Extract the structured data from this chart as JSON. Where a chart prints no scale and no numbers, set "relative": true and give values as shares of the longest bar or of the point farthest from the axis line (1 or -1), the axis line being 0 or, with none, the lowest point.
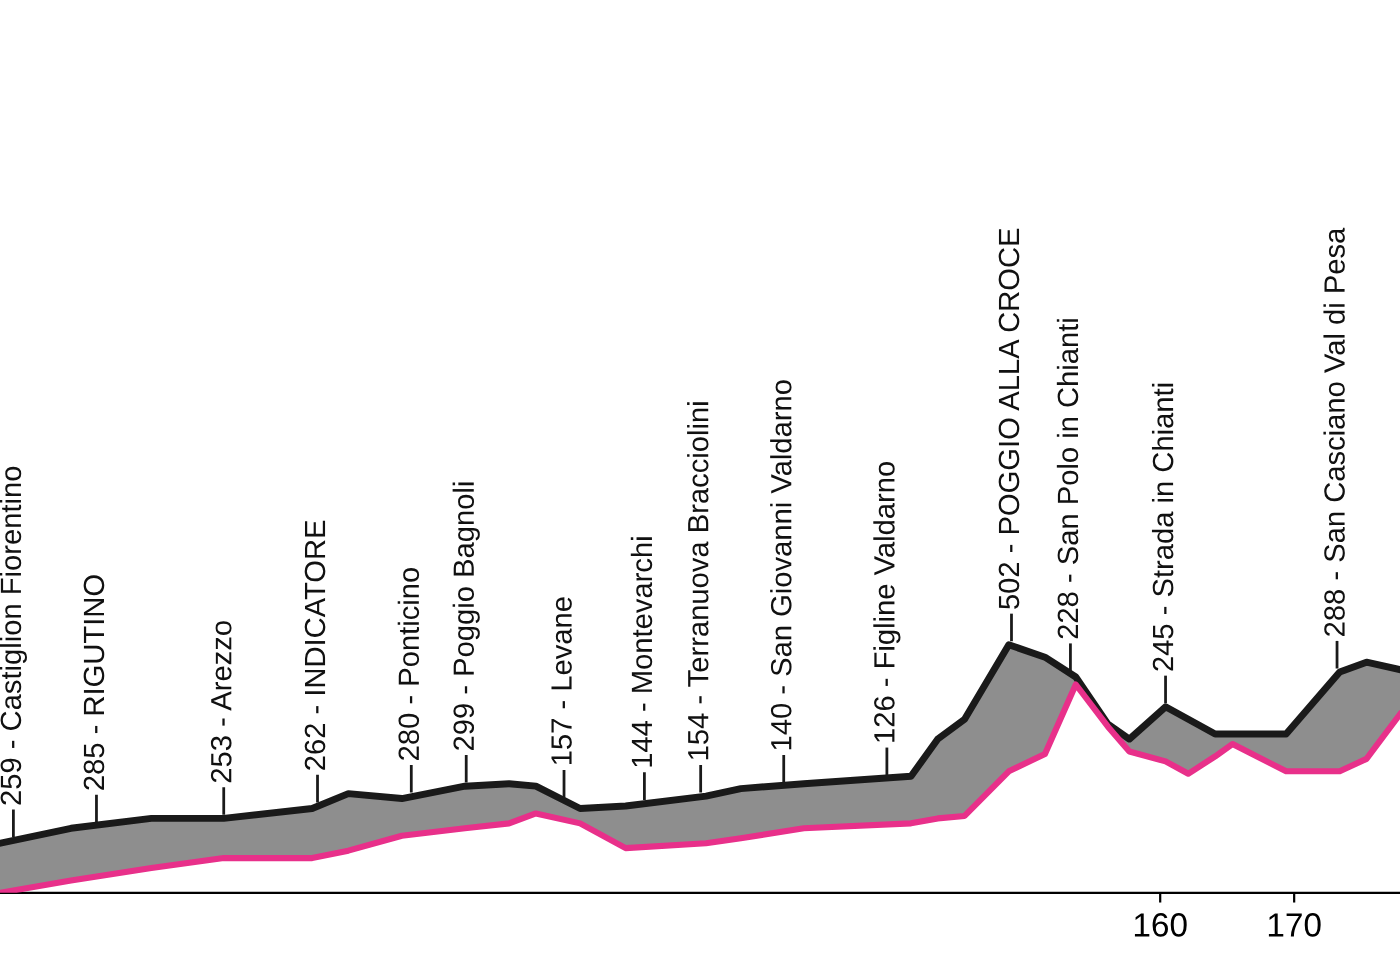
{
  "chart_data": {
    "type": "line",
    "relative": true,
    "x": [
      73.4,
      78.7,
      84.7,
      90.1,
      96.7,
      99.4,
      103.4,
      108.1,
      111.4,
      113.4,
      116.7,
      120.1,
      126.1,
      128.7,
      133.4,
      141.4,
      143.4,
      145.4,
      148.7,
      151.4,
      153.7,
      156.1,
      157.7,
      160.4,
      162.1,
      164.1,
      165.4,
      169.4,
      173.4,
      175.4,
      177.9
    ],
    "series": [
      {
        "color": "#1a1a1a",
        "values": [
          0.2,
          0.26,
          0.3,
          0.3,
          0.34,
          0.4,
          0.38,
          0.43,
          0.44,
          0.43,
          0.34,
          0.35,
          0.39,
          0.42,
          0.44,
          0.47,
          0.62,
          0.7,
          1.0,
          0.95,
          0.87,
          0.68,
          0.62,
          0.75,
          0.7,
          0.64,
          0.64,
          0.64,
          0.89,
          0.93,
          0.9
        ],
        "lower": [
          0,
          0.05,
          0.1,
          0.14,
          0.14,
          0.17,
          0.23,
          0.26,
          0.28,
          0.32,
          0.28,
          0.18,
          0.2,
          0.22,
          0.26,
          0.28,
          0.3,
          0.31,
          0.49,
          0.56,
          0.84,
          0.67,
          0.57,
          0.53,
          0.48,
          0.55,
          0.6,
          0.49,
          0.49,
          0.54,
          0.72
        ],
        "upper": [
          0.2,
          0.26,
          0.3,
          0.3,
          0.34,
          0.4,
          0.38,
          0.43,
          0.44,
          0.43,
          0.34,
          0.35,
          0.39,
          0.42,
          0.44,
          0.47,
          0.62,
          0.7,
          1.0,
          0.95,
          0.87,
          0.68,
          0.62,
          0.75,
          0.7,
          0.64,
          0.64,
          0.64,
          0.89,
          0.93,
          0.9
        ]
      },
      {
        "color": "#e8308a",
        "values": [
          0,
          0.05,
          0.1,
          0.14,
          0.14,
          0.17,
          0.23,
          0.26,
          0.28,
          0.32,
          0.28,
          0.18,
          0.2,
          0.22,
          0.26,
          0.28,
          0.3,
          0.31,
          0.49,
          0.56,
          0.84,
          0.67,
          0.57,
          0.53,
          0.48,
          0.55,
          0.6,
          0.49,
          0.49,
          0.54,
          0.72
        ]
      }
    ],
    "xlim": [
      73.4,
      177.9
    ],
    "xticks": [
      160,
      170
    ],
    "tick_labels": "x",
    "grid": false,
    "legend": false,
    "marker": "none",
    "line_style": "solid",
    "annotations": [
      {
        "text": "259 - Castiglion Fiorentino",
        "x": 74.4,
        "y": 0.21
      },
      {
        "text": "285 - RIGUTINO",
        "x": 80.6,
        "y": 0.27
      },
      {
        "text": "253 - Arezzo",
        "x": 90.1,
        "y": 0.3
      },
      {
        "text": "262 - INDICATORE",
        "x": 97.1,
        "y": 0.35
      },
      {
        "text": "280 - Ponticino",
        "x": 104.1,
        "y": 0.39
      },
      {
        "text": "299 - Poggio Bagnoli",
        "x": 108.2,
        "y": 0.43
      },
      {
        "text": "157 - Levane",
        "x": 115.5,
        "y": 0.37
      },
      {
        "text": "144 - Montevarchi",
        "x": 121.5,
        "y": 0.36
      },
      {
        "text": "154 - Terranuova Bracciolini",
        "x": 125.7,
        "y": 0.39
      },
      {
        "text": "140 - San Giovanni Valdarno",
        "x": 131.9,
        "y": 0.43
      },
      {
        "text": "126 - Figline Valdarno",
        "x": 139.6,
        "y": 0.46
      },
      {
        "text": "502 - POGGIO ALLA CROCE",
        "x": 148.9,
        "y": 1.0
      },
      {
        "text": "228 - San Polo in Chianti",
        "x": 153.3,
        "y": 0.88
      },
      {
        "text": "245 - Strada in Chianti",
        "x": 160.4,
        "y": 0.75
      },
      {
        "text": "288 - San Casciano Val di Pesa",
        "x": 173.2,
        "y": 0.89
      }
    ]
  }
}
